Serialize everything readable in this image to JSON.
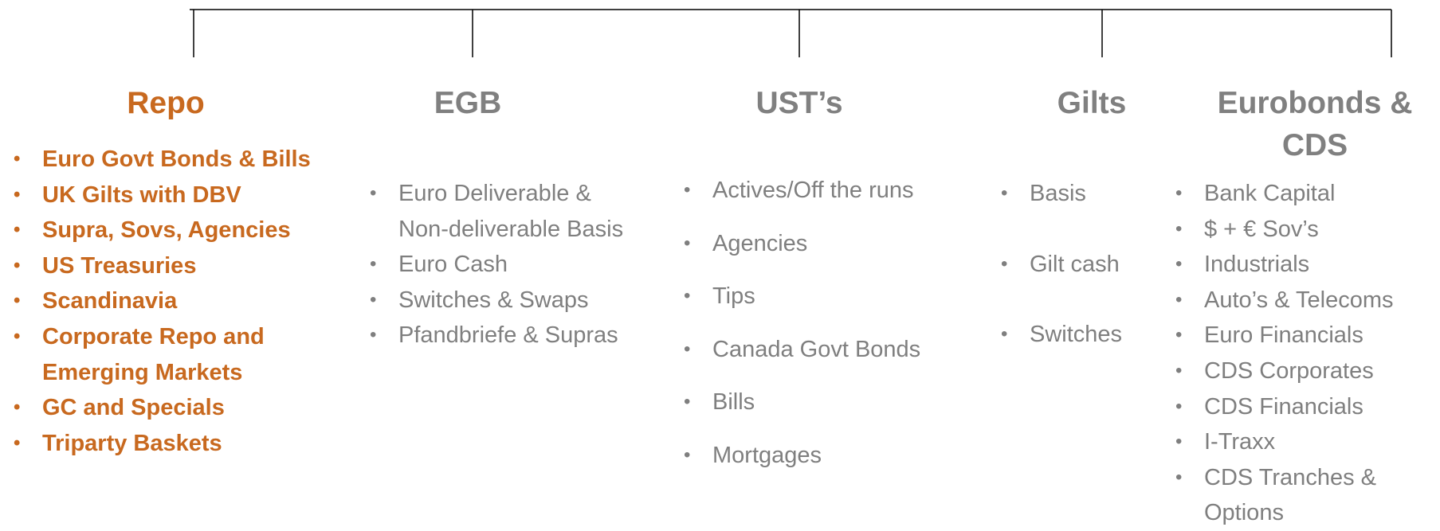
{
  "columns": [
    {
      "title": "Repo",
      "items": [
        "Euro Govt Bonds & Bills",
        "UK Gilts with DBV",
        "Supra, Sovs, Agencies",
        "US Treasuries",
        "Scandinavia",
        "Corporate Repo and Emerging Markets",
        "GC and Specials",
        "Triparty Baskets"
      ]
    },
    {
      "title": "EGB",
      "items": [
        "Euro Deliverable & Non-deliverable Basis",
        "Euro Cash",
        "Switches & Swaps",
        "Pfandbriefe & Supras"
      ]
    },
    {
      "title": "UST’s",
      "items": [
        "Actives/Off the runs",
        "Agencies",
        "Tips",
        "Canada Govt Bonds",
        "Bills",
        "Mortgages"
      ]
    },
    {
      "title": "Gilts",
      "items": [
        "Basis",
        "Gilt cash",
        "Switches"
      ]
    },
    {
      "title": "Eurobonds & CDS",
      "items": [
        "Bank Capital",
        "$ + € Sov’s",
        "Industrials",
        "Auto’s & Telecoms",
        "Euro Financials",
        "CDS Corporates",
        "CDS Financials",
        "I-Traxx",
        "CDS Tranches & Options"
      ]
    }
  ]
}
